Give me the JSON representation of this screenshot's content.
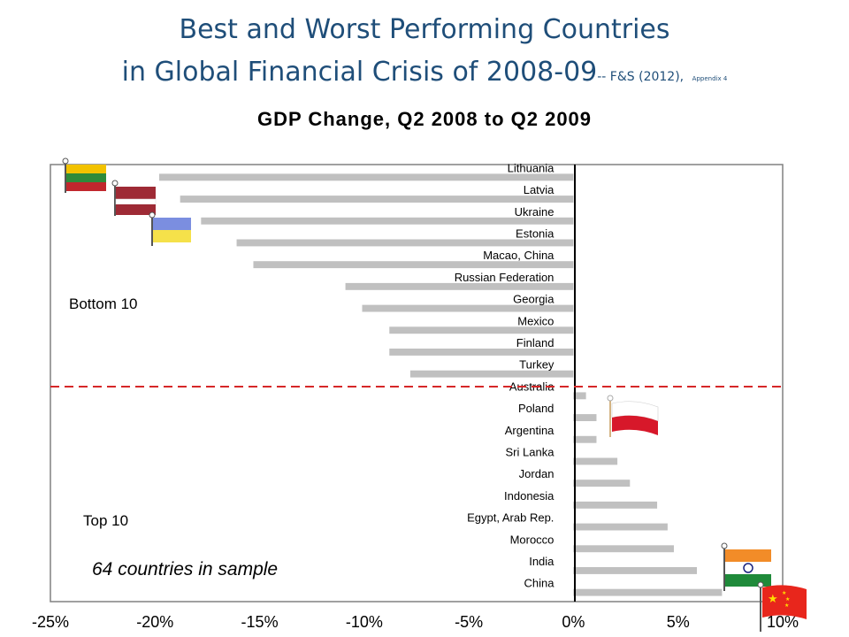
{
  "title_line1": "Best and Worst Performing Countries",
  "title_line2": "in Global Financial Crisis of 2008-09",
  "title_cite": "-- F&S (2012),",
  "title_cite_small": "Appendix 4",
  "chart_data": {
    "type": "bar",
    "orientation": "horizontal",
    "title": "GDP Change,  Q2 2008  to Q2 2009",
    "categories": [
      "Lithuania",
      "Latvia",
      "Ukraine",
      "Estonia",
      "Macao, China",
      "Russian Federation",
      "Georgia",
      "Mexico",
      "Finland",
      "Turkey",
      "Australia",
      "Poland",
      "Argentina",
      "Sri Lanka",
      "Jordan",
      "Indonesia",
      "Egypt, Arab Rep.",
      "Morocco",
      "India",
      "China"
    ],
    "values": [
      -19.8,
      -18.8,
      -17.8,
      -16.1,
      -15.3,
      -10.9,
      -10.1,
      -8.8,
      -8.8,
      -7.8,
      0.6,
      1.1,
      1.1,
      2.1,
      2.7,
      4.0,
      4.5,
      4.8,
      5.9,
      7.1
    ],
    "xlim": [
      -25,
      10
    ],
    "x_ticks": [
      "-25%",
      "-20%",
      "-15%",
      "-10%",
      "-5%",
      "0%",
      "5%",
      "10%"
    ],
    "tick_values": [
      -25,
      -20,
      -15,
      -10,
      -5,
      0,
      5,
      10
    ],
    "bar_color": "#c0c0c0",
    "divider_color": "#d62728",
    "annotations": {
      "bottom": "Bottom 10",
      "top": "Top 10",
      "sample": "64 countries in sample"
    },
    "flags": [
      "lithuania-flag",
      "latvia-flag",
      "ukraine-flag",
      "poland-flag",
      "india-flag",
      "china-flag"
    ]
  }
}
